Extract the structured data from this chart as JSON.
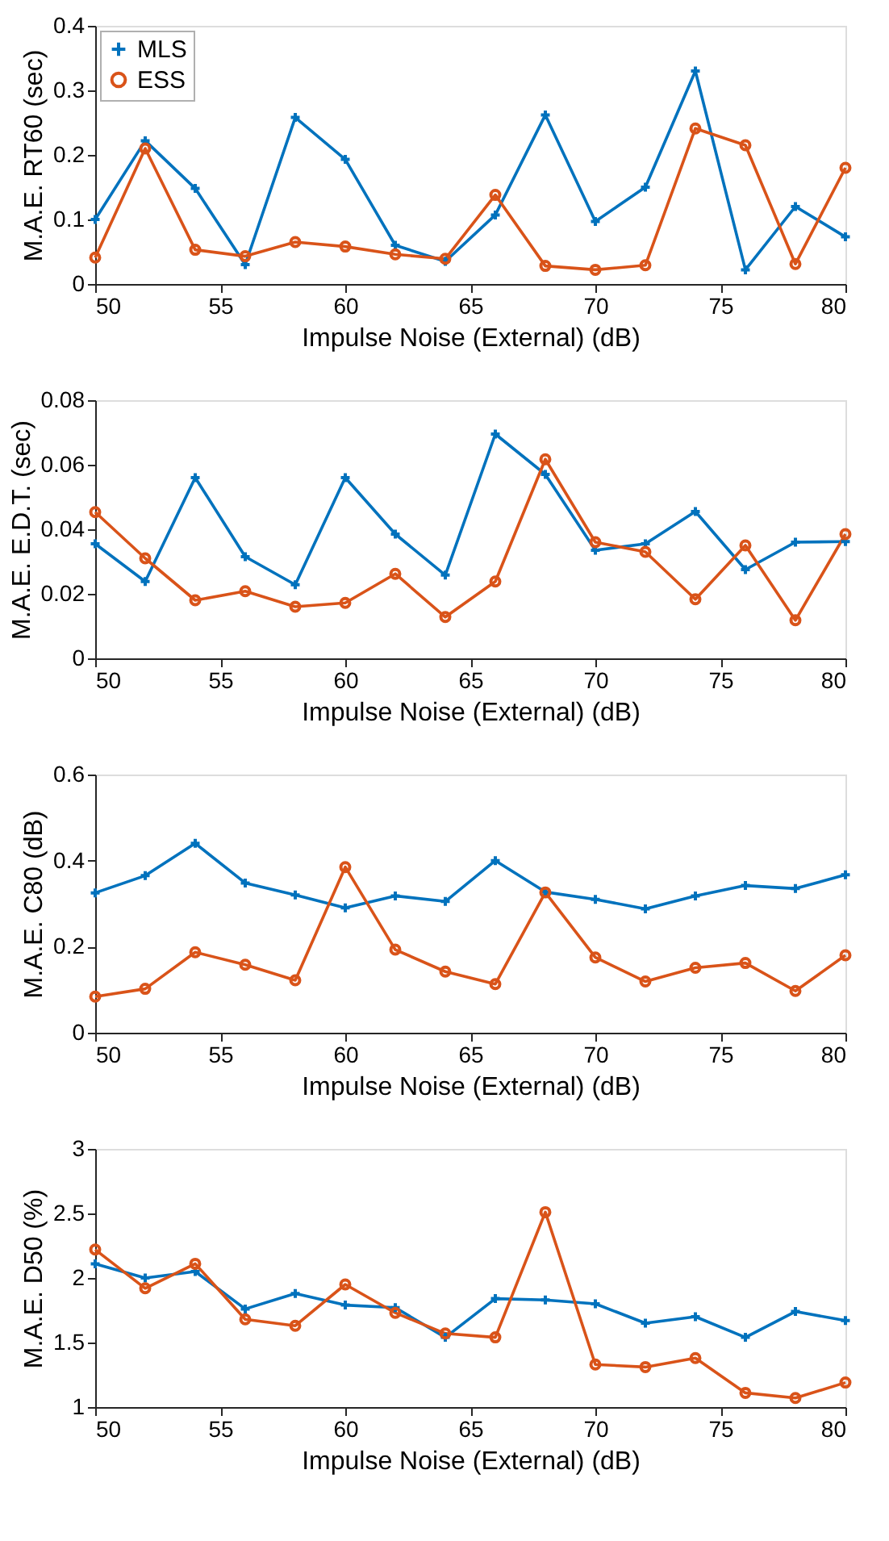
{
  "chart_data": [
    {
      "type": "line",
      "xlabel": "Impulse Noise (External) (dB)",
      "ylabel": "M.A.E. RT60 (sec)",
      "x": [
        50,
        52,
        54,
        56,
        58,
        60,
        62,
        64,
        66,
        68,
        70,
        72,
        74,
        76,
        78,
        80
      ],
      "xlim": [
        50,
        80
      ],
      "xticks": [
        50,
        55,
        60,
        65,
        70,
        75,
        80
      ],
      "ylim": [
        0,
        0.4
      ],
      "yticks": [
        0,
        0.1,
        0.2,
        0.3,
        0.4
      ],
      "legend": "top left",
      "grid": false,
      "line_style": "solid",
      "series": [
        {
          "name": "MLS",
          "color": "#0072bd",
          "marker": "cross",
          "values": [
            0.1,
            0.222,
            0.148,
            0.03,
            0.258,
            0.193,
            0.06,
            0.035,
            0.107,
            0.262,
            0.097,
            0.15,
            0.33,
            0.022,
            0.12,
            0.073
          ]
        },
        {
          "name": "ESS",
          "color": "#d95319",
          "marker": "circle",
          "values": [
            0.041,
            0.21,
            0.053,
            0.043,
            0.065,
            0.058,
            0.046,
            0.039,
            0.138,
            0.028,
            0.022,
            0.029,
            0.241,
            0.215,
            0.031,
            0.18
          ]
        }
      ]
    },
    {
      "type": "line",
      "xlabel": "Impulse Noise (External) (dB)",
      "ylabel": "M.A.E.  E.D.T. (sec)",
      "x": [
        50,
        52,
        54,
        56,
        58,
        60,
        62,
        64,
        66,
        68,
        70,
        72,
        74,
        76,
        78,
        80
      ],
      "xlim": [
        50,
        80
      ],
      "xticks": [
        50,
        55,
        60,
        65,
        70,
        75,
        80
      ],
      "ylim": [
        0,
        0.08
      ],
      "yticks": [
        0,
        0.02,
        0.04,
        0.06,
        0.08
      ],
      "legend": "top left",
      "grid": false,
      "line_style": "solid",
      "series": [
        {
          "name": "MLS",
          "color": "#0072bd",
          "marker": "cross",
          "values": [
            0.0355,
            0.0238,
            0.056,
            0.0315,
            0.0228,
            0.056,
            0.0385,
            0.0258,
            0.0695,
            0.057,
            0.0335,
            0.0355,
            0.0455,
            0.0275,
            0.036,
            0.0362
          ]
        },
        {
          "name": "ESS",
          "color": "#d95319",
          "marker": "circle",
          "values": [
            0.0453,
            0.031,
            0.018,
            0.0208,
            0.016,
            0.0172,
            0.0262,
            0.0128,
            0.0238,
            0.0617,
            0.036,
            0.033,
            0.0183,
            0.035,
            0.0118,
            0.0385
          ]
        }
      ]
    },
    {
      "type": "line",
      "xlabel": "Impulse Noise (External) (dB)",
      "ylabel": "M.A.E. C80 (dB)",
      "x": [
        50,
        52,
        54,
        56,
        58,
        60,
        62,
        64,
        66,
        68,
        70,
        72,
        74,
        76,
        78,
        80
      ],
      "xlim": [
        50,
        80
      ],
      "xticks": [
        50,
        55,
        60,
        65,
        70,
        75,
        80
      ],
      "ylim": [
        0,
        0.6
      ],
      "yticks": [
        0,
        0.2,
        0.4,
        0.6
      ],
      "legend": "top left",
      "grid": false,
      "line_style": "solid",
      "series": [
        {
          "name": "MLS",
          "color": "#0072bd",
          "marker": "cross",
          "values": [
            0.325,
            0.365,
            0.44,
            0.348,
            0.32,
            0.29,
            0.318,
            0.305,
            0.4,
            0.327,
            0.31,
            0.288,
            0.318,
            0.342,
            0.335,
            0.367
          ]
        },
        {
          "name": "ESS",
          "color": "#d95319",
          "marker": "circle",
          "values": [
            0.084,
            0.102,
            0.187,
            0.158,
            0.122,
            0.385,
            0.193,
            0.142,
            0.113,
            0.326,
            0.175,
            0.119,
            0.151,
            0.162,
            0.097,
            0.18
          ]
        }
      ]
    },
    {
      "type": "line",
      "xlabel": "Impulse Noise (External) (dB)",
      "ylabel": "M.A.E. D50 (%)",
      "x": [
        50,
        52,
        54,
        56,
        58,
        60,
        62,
        64,
        66,
        68,
        70,
        72,
        74,
        76,
        78,
        80
      ],
      "xlim": [
        50,
        80
      ],
      "xticks": [
        50,
        55,
        60,
        65,
        70,
        75,
        80
      ],
      "ylim": [
        1,
        3
      ],
      "yticks": [
        1,
        1.5,
        2,
        2.5,
        3
      ],
      "legend": "top left",
      "grid": false,
      "line_style": "solid",
      "series": [
        {
          "name": "MLS",
          "color": "#0072bd",
          "marker": "cross",
          "values": [
            2.11,
            2.0,
            2.05,
            1.76,
            1.88,
            1.79,
            1.77,
            1.54,
            1.84,
            1.83,
            1.8,
            1.65,
            1.7,
            1.54,
            1.74,
            1.67
          ]
        },
        {
          "name": "ESS",
          "color": "#d95319",
          "marker": "circle",
          "values": [
            2.22,
            1.92,
            2.11,
            1.68,
            1.63,
            1.95,
            1.73,
            1.57,
            1.54,
            2.51,
            1.33,
            1.31,
            1.38,
            1.11,
            1.07,
            1.19
          ]
        }
      ]
    }
  ]
}
